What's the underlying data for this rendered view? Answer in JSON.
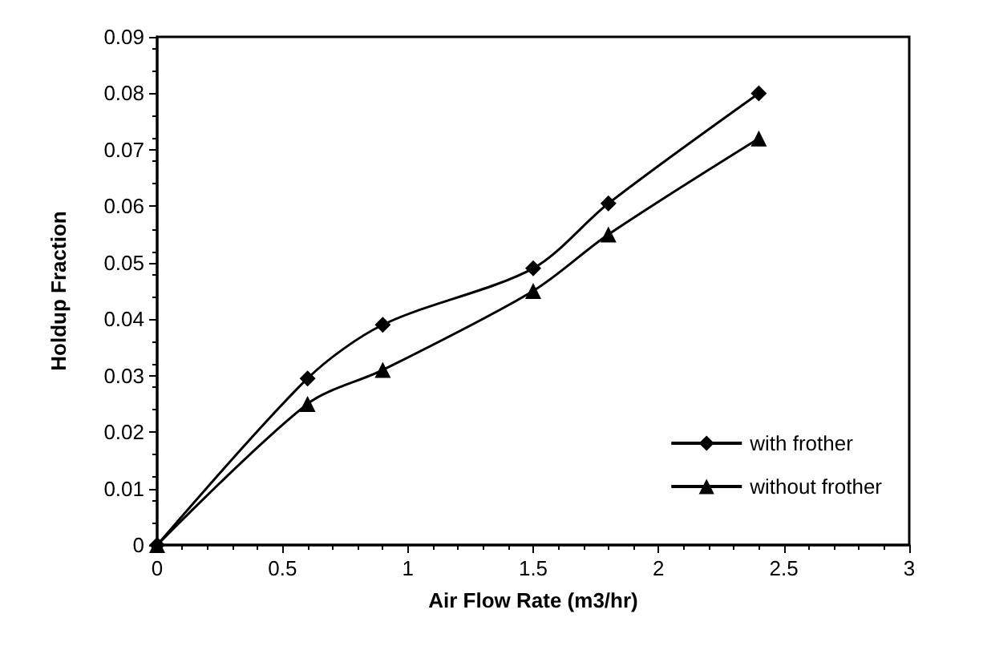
{
  "chart_data": {
    "type": "line",
    "xlabel": "Air Flow Rate (m3/hr)",
    "ylabel": "Holdup Fraction",
    "xlim": [
      0,
      3
    ],
    "xticks": [
      0,
      0.5,
      1,
      1.5,
      2,
      2.5,
      3
    ],
    "ylim": [
      0,
      0.09
    ],
    "yticks": [
      0,
      0.01,
      0.02,
      0.03,
      0.04,
      0.05,
      0.06,
      0.07,
      0.08,
      0.09
    ],
    "x": [
      0,
      0.6,
      0.9,
      1.5,
      1.8,
      2.4
    ],
    "series": [
      {
        "name": "with frother",
        "color": "#000000",
        "marker": "diamond",
        "values": [
          0,
          0.0295,
          0.039,
          0.049,
          0.0605,
          0.08
        ]
      },
      {
        "name": "without frother",
        "color": "#000000",
        "marker": "triangle",
        "values": [
          0,
          0.025,
          0.031,
          0.045,
          0.055,
          0.072
        ]
      }
    ],
    "grid": false,
    "legend": "bottom right",
    "line_style": "solid"
  }
}
